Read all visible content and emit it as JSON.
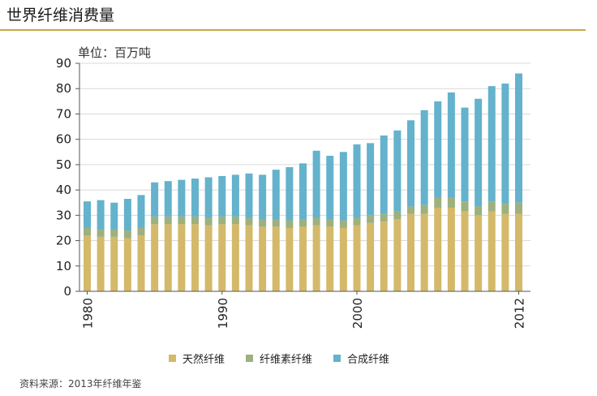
{
  "header": {
    "title": "世界纤维消费量",
    "unit": "单位：百万吨"
  },
  "source": "资料来源：2013年纤维年鉴",
  "colors": {
    "natural": "#d4b96a",
    "cellulose": "#9db07e",
    "synthetic": "#64b2cc",
    "rule": "#c8a84b"
  },
  "chart_data": {
    "type": "bar",
    "stacked": true,
    "title": "世界纤维消费量",
    "ylabel": "单位：百万吨",
    "xlabel": "",
    "ylim": [
      0,
      90
    ],
    "yticks": [
      0,
      10,
      20,
      30,
      40,
      50,
      60,
      70,
      80,
      90
    ],
    "x": [
      1980,
      1981,
      1982,
      1983,
      1984,
      1985,
      1986,
      1987,
      1988,
      1989,
      1990,
      1991,
      1992,
      1993,
      1994,
      1995,
      1996,
      1997,
      1998,
      1999,
      2000,
      2001,
      2002,
      2003,
      2004,
      2005,
      2006,
      2007,
      2008,
      2009,
      2010,
      2011,
      2012
    ],
    "xtick_labels": [
      "1980",
      "1990",
      "2000",
      "2012"
    ],
    "xtick_values": [
      1980,
      1990,
      2000,
      2012
    ],
    "series": [
      {
        "name": "天然纤维",
        "values": [
          22,
          21.5,
          21.5,
          21,
          22,
          26.5,
          26.5,
          26.5,
          26.5,
          26,
          26.5,
          26.5,
          26,
          25.5,
          25.5,
          25,
          25.5,
          26,
          25.5,
          25,
          26,
          27,
          27.5,
          28.5,
          30.5,
          30.5,
          33,
          33,
          31.5,
          30,
          31.5,
          30.5,
          30.5
        ]
      },
      {
        "name": "纤维素纤维",
        "values": [
          3,
          3,
          3,
          3,
          3,
          3,
          3,
          3,
          3,
          3,
          3,
          3,
          3,
          3,
          3,
          3,
          3,
          3,
          3,
          3,
          3,
          3,
          3,
          3,
          3,
          3.5,
          4,
          4,
          4,
          3.5,
          4,
          4,
          4.5
        ]
      },
      {
        "name": "合成纤维",
        "values": [
          10.5,
          11.5,
          10.5,
          12.5,
          13,
          13.5,
          14,
          14.5,
          15,
          16,
          16,
          16.5,
          17.5,
          17.5,
          19.5,
          21,
          22,
          26.5,
          25,
          27,
          29,
          28.5,
          31,
          32,
          34,
          37.5,
          38,
          41.5,
          37,
          42.5,
          45.5,
          47.5,
          51
        ]
      }
    ]
  }
}
